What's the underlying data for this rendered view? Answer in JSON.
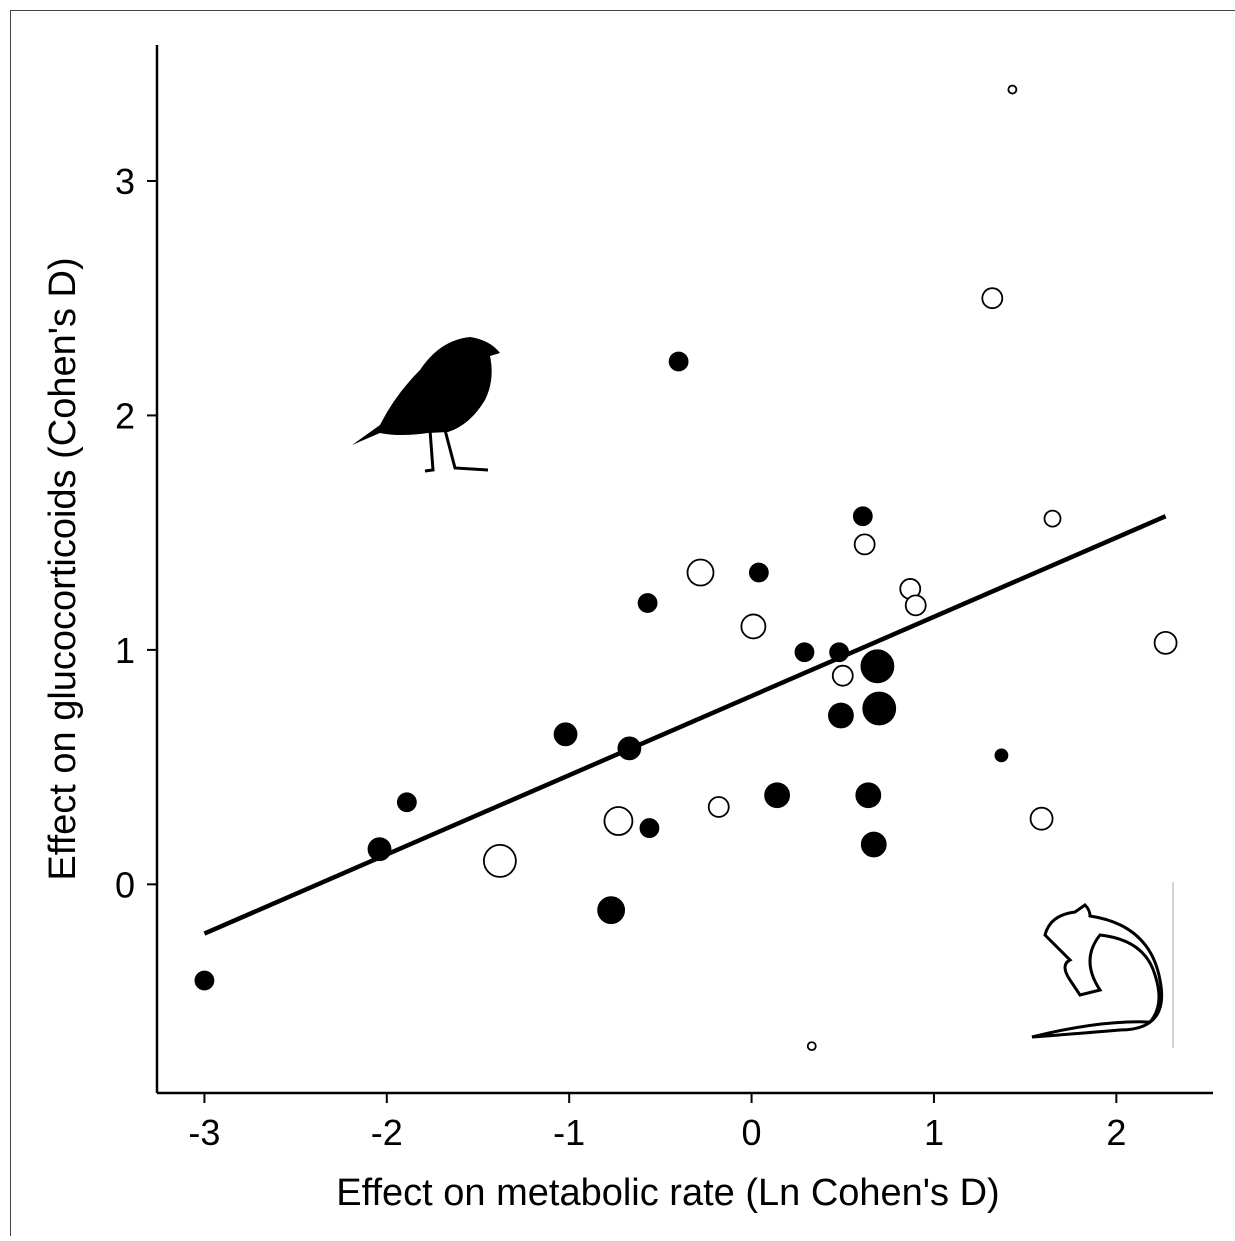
{
  "chart_data": {
    "type": "scatter",
    "x_label": "Effect on metabolic rate (Ln Cohen's D)",
    "y_label": "Effect on glucocorticoids (Cohen's D)",
    "xlim": [
      -3.26,
      2.53
    ],
    "ylim": [
      -0.89,
      3.58
    ],
    "xticks": [
      -3,
      -2,
      -1,
      0,
      1,
      2
    ],
    "yticks": [
      0,
      1,
      2,
      3
    ],
    "series": [
      {
        "color": "#000000",
        "filled": true,
        "x": [
          -3.0,
          -2.04,
          -1.89,
          -1.02,
          -0.67,
          -0.56,
          -0.77,
          -0.57,
          -0.4,
          0.04,
          0.14,
          0.29,
          0.48,
          0.49,
          0.61,
          0.64,
          0.67,
          0.69,
          0.7,
          1.37
        ],
        "values": [
          -0.41,
          0.15,
          0.35,
          0.64,
          0.58,
          0.24,
          -0.11,
          1.2,
          2.23,
          1.33,
          0.38,
          0.99,
          0.99,
          0.72,
          1.57,
          0.38,
          0.17,
          0.93,
          0.75,
          0.55
        ],
        "sizes": [
          9,
          11,
          9,
          11,
          11,
          9,
          13,
          9,
          9,
          9,
          12,
          9,
          9,
          12,
          9,
          12,
          12,
          16,
          16,
          6
        ]
      },
      {
        "color": "#000000",
        "filled": false,
        "x": [
          -1.38,
          -0.73,
          -0.28,
          -0.18,
          0.01,
          0.5,
          0.62,
          0.87,
          0.9,
          0.33,
          1.32,
          1.43,
          1.65,
          1.59,
          2.27
        ],
        "values": [
          0.1,
          0.27,
          1.33,
          0.33,
          1.1,
          0.89,
          1.45,
          1.26,
          1.19,
          -0.69,
          2.5,
          3.39,
          1.56,
          0.28,
          1.03
        ],
        "sizes": [
          16,
          14,
          13,
          10,
          12,
          10,
          10,
          10,
          10,
          4,
          10,
          4,
          8,
          11,
          11
        ]
      }
    ],
    "fit": {
      "color": "#000000",
      "x": [
        -3.0,
        2.27
      ],
      "values": [
        -0.21,
        1.57
      ]
    }
  }
}
